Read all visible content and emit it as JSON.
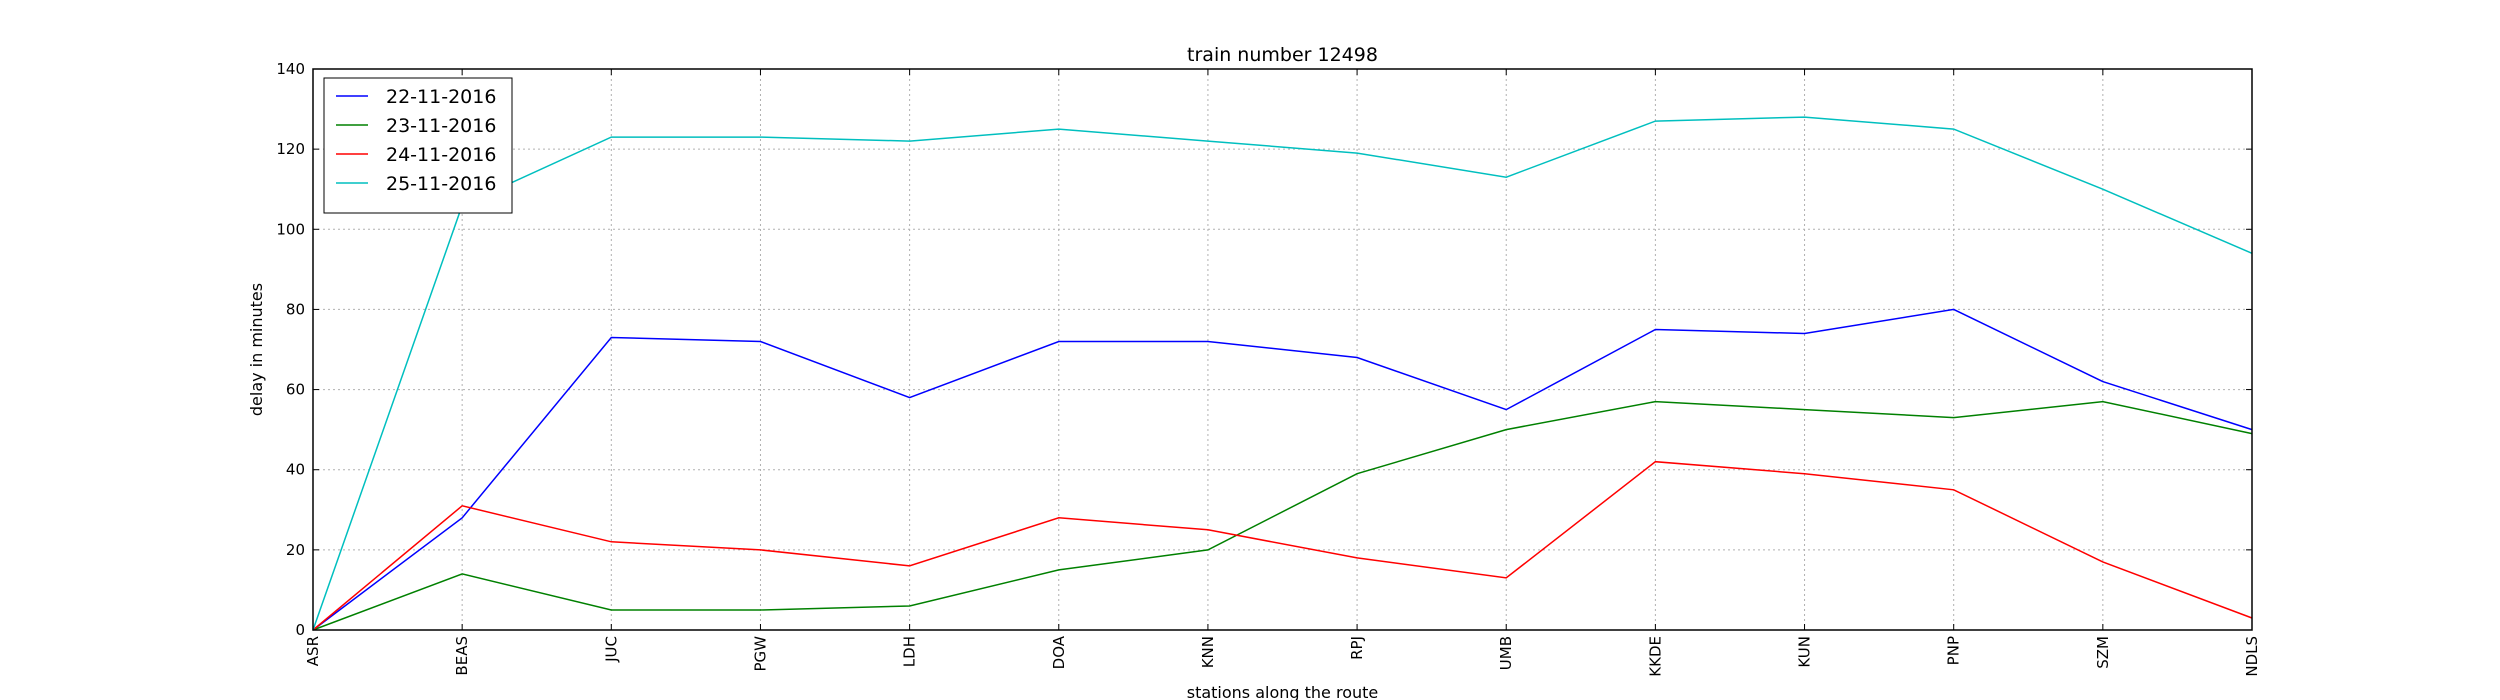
{
  "chart_data": {
    "type": "line",
    "title": "train number 12498",
    "xlabel": "stations along the route",
    "ylabel": "delay in minutes",
    "categories": [
      "ASR",
      "BEAS",
      "JUC",
      "PGW",
      "LDH",
      "DOA",
      "KNN",
      "RPJ",
      "UMB",
      "KKDE",
      "KUN",
      "PNP",
      "SZM",
      "NDLS"
    ],
    "ylim": [
      0,
      140
    ],
    "yticks": [
      0,
      20,
      40,
      60,
      80,
      100,
      120,
      140
    ],
    "grid": true,
    "legend_position": "top-left",
    "series": [
      {
        "name": "22-11-2016",
        "color": "#0000ff",
        "values": [
          0,
          28,
          73,
          72,
          58,
          72,
          72,
          68,
          55,
          75,
          74,
          80,
          62,
          50
        ]
      },
      {
        "name": "23-11-2016",
        "color": "#008000",
        "values": [
          0,
          14,
          5,
          5,
          6,
          15,
          20,
          39,
          50,
          57,
          55,
          53,
          57,
          49
        ]
      },
      {
        "name": "24-11-2016",
        "color": "#ff0000",
        "values": [
          0,
          31,
          22,
          20,
          16,
          28,
          25,
          18,
          13,
          42,
          39,
          35,
          17,
          3
        ]
      },
      {
        "name": "25-11-2016",
        "color": "#00bfbf",
        "values": [
          0,
          106,
          123,
          123,
          122,
          125,
          122,
          119,
          113,
          127,
          128,
          125,
          110,
          94
        ]
      }
    ]
  }
}
